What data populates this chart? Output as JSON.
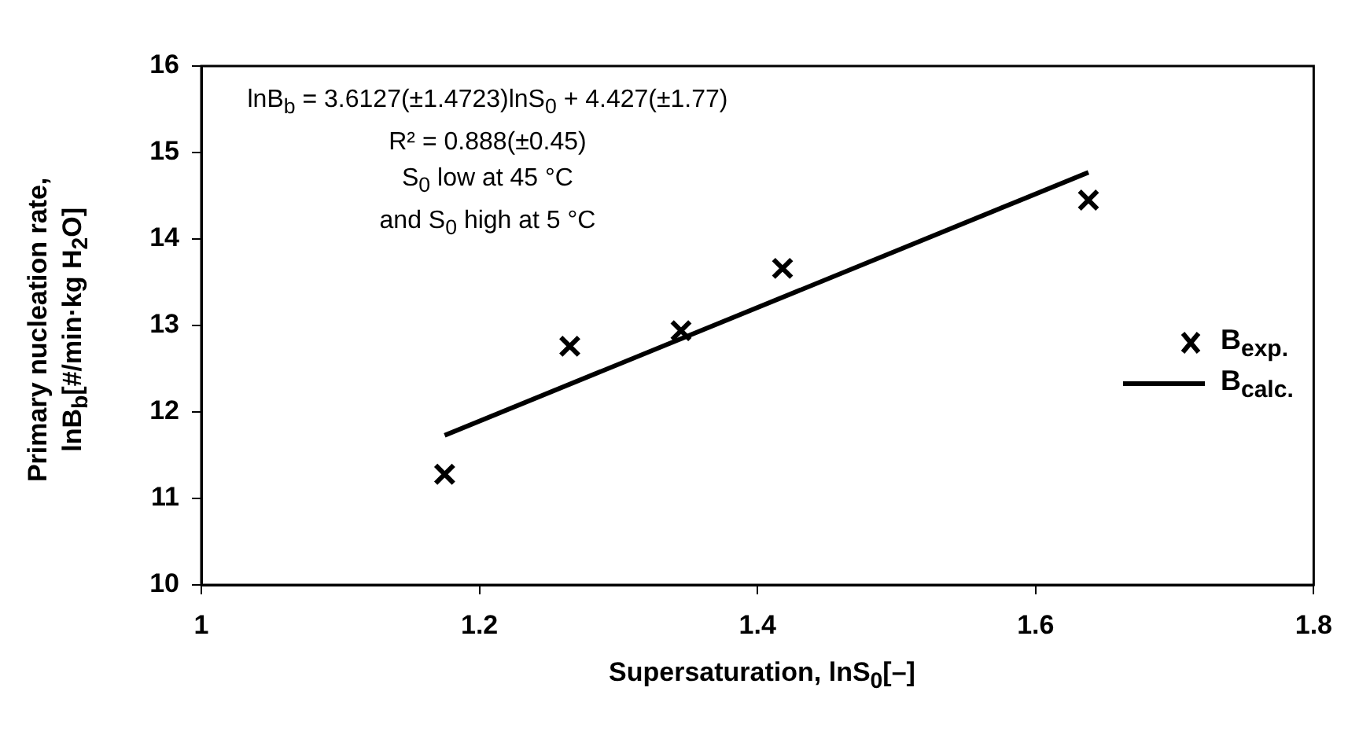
{
  "chart_data": {
    "type": "scatter",
    "xlabel": "Supersaturation, lnS$_{0}$[–]",
    "ylabel": "Primary nucleation rate, lnB$_{b}$[#/min·kg H$_{2}$O]",
    "xlim": [
      1,
      1.8
    ],
    "xticks": [
      1,
      1.2,
      1.4,
      1.6,
      1.8
    ],
    "ylim": [
      10,
      16
    ],
    "yticks": [
      10,
      11,
      12,
      13,
      14,
      15,
      16
    ],
    "grid": false,
    "legend": "right",
    "annotations": [
      "lnB$_{b}$ = 3.6127(±1.4723)lnS$_{0}$ + 4.427(±1.77)",
      "R² = 0.888(±0.45)",
      "S$_{0}$ low at 45 °C",
      "and S$_{0}$ high at 5 °C"
    ],
    "series": [
      {
        "name": "B$_{exp.}$",
        "marker": "cross",
        "color": "#000000",
        "x": [
          1.175,
          1.265,
          1.345,
          1.418,
          1.638
        ],
        "values": [
          11.28,
          12.76,
          12.94,
          13.66,
          14.45
        ]
      },
      {
        "name": "B$_{calc.}$",
        "type": "line",
        "marker": "none",
        "line_style": "solid",
        "color": "#000000",
        "x": [
          1.175,
          1.638
        ],
        "values": [
          11.73,
          14.77
        ]
      }
    ]
  }
}
